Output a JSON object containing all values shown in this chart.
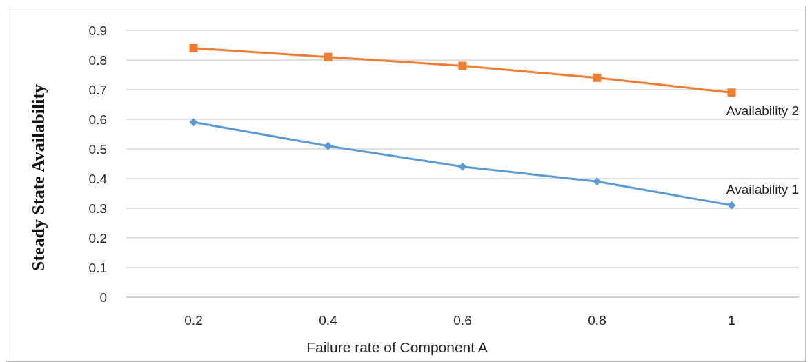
{
  "chart_data": {
    "type": "line",
    "xlabel": "Failure rate of Component A",
    "ylabel": "Steady State Availability",
    "categories": [
      "0.2",
      "0.4",
      "0.6",
      "0.8",
      "1"
    ],
    "ylim": [
      0,
      0.9
    ],
    "yticks": [
      0,
      0.1,
      0.2,
      0.3,
      0.4,
      0.5,
      0.6,
      0.7,
      0.8,
      0.9
    ],
    "grid": "y",
    "series": [
      {
        "name": "Availability 1",
        "color": "#5b9bd5",
        "marker": "diamond",
        "values": [
          0.59,
          0.51,
          0.44,
          0.39,
          0.31
        ]
      },
      {
        "name": "Availability 2",
        "color": "#ed7d31",
        "marker": "square",
        "values": [
          0.84,
          0.81,
          0.78,
          0.74,
          0.69
        ]
      }
    ]
  }
}
